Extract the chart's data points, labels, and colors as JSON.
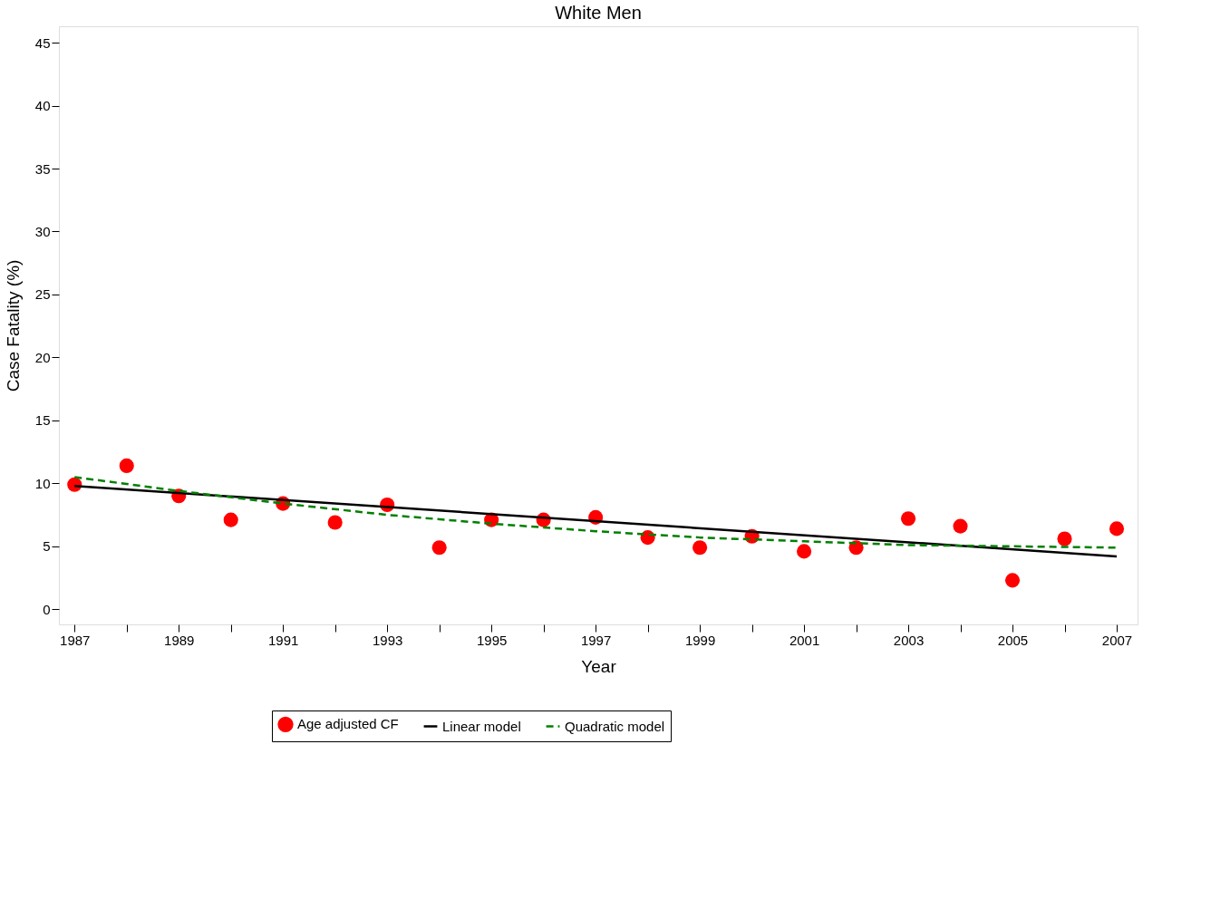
{
  "chart_data": {
    "type": "scatter",
    "title": "White Men",
    "xlabel": "Year",
    "ylabel": "Case Fatality (%)",
    "xlim": [
      1986.7,
      2007.4
    ],
    "ylim": [
      -1.2,
      46.3
    ],
    "xticks": [
      1987,
      {
        "value": 1988,
        "label": null
      },
      1989,
      {
        "value": 1990,
        "label": null
      },
      1991,
      {
        "value": 1992,
        "label": null
      },
      1993,
      {
        "value": 1994,
        "label": null
      },
      1995,
      {
        "value": 1996,
        "label": null
      },
      1997,
      {
        "value": 1998,
        "label": null
      },
      1999,
      {
        "value": 2000,
        "label": null
      },
      2001,
      {
        "value": 2002,
        "label": null
      },
      2003,
      {
        "value": 2004,
        "label": null
      },
      2005,
      {
        "value": 2006,
        "label": null
      },
      2007
    ],
    "yticks": [
      0,
      5,
      10,
      15,
      20,
      25,
      30,
      35,
      40,
      45
    ],
    "grid": false,
    "legend": "bottom",
    "series": [
      {
        "name": "Age adjusted CF",
        "marker": "circle",
        "color": "#ff0000",
        "x": [
          1987,
          1988,
          1989,
          1990,
          1991,
          1992,
          1993,
          1994,
          1995,
          1996,
          1997,
          1998,
          1999,
          2000,
          2001,
          2002,
          2003,
          2004,
          2005,
          2006,
          2007
        ],
        "values": [
          9.9,
          11.4,
          9.0,
          7.1,
          8.4,
          6.9,
          8.3,
          4.9,
          7.1,
          7.1,
          7.3,
          5.7,
          4.9,
          5.8,
          4.6,
          4.9,
          7.2,
          6.6,
          2.3,
          5.6,
          6.4
        ]
      },
      {
        "name": "Linear model",
        "type": "line",
        "line_style": "solid",
        "color": "#000000",
        "x": [
          1987,
          2007
        ],
        "values": [
          9.8,
          4.2
        ]
      },
      {
        "name": "Quadratic model",
        "type": "line",
        "line_style": "dashed",
        "color": "#008000",
        "x": [
          1987,
          1989,
          1991,
          1993,
          1995,
          1997,
          1999,
          2001,
          2003,
          2005,
          2007
        ],
        "values": [
          10.5,
          9.4,
          8.4,
          7.5,
          6.8,
          6.2,
          5.7,
          5.4,
          5.1,
          5.0,
          4.9
        ]
      }
    ]
  }
}
